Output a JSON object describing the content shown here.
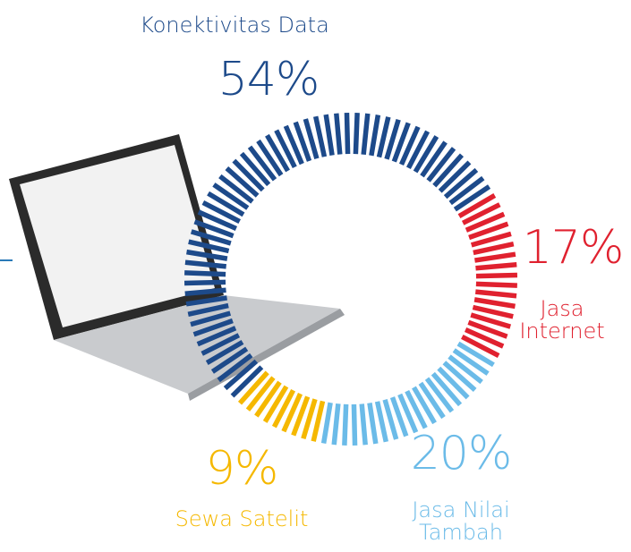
{
  "chart_data": {
    "type": "pie",
    "categories": [
      "Jasa Internet",
      "Jasa Nilai Tambah",
      "Sewa Satelit",
      "Konektivitas Data"
    ],
    "values": [
      17,
      20,
      9,
      54
    ],
    "value_labels": [
      "17%",
      "20%",
      "9%",
      "54%"
    ],
    "colors": [
      "#e0212f",
      "#6bbbe8",
      "#f5b800",
      "#1d4a8a"
    ]
  }
}
